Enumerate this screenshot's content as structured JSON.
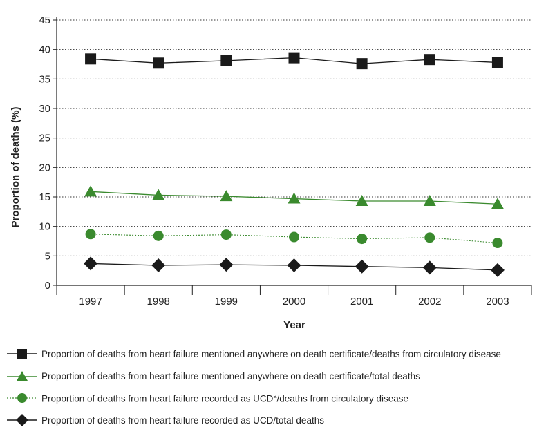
{
  "chart_data": {
    "type": "line",
    "xlabel": "Year",
    "ylabel": "Proportion of deaths (%)",
    "categories": [
      "1997",
      "1998",
      "1999",
      "2000",
      "2001",
      "2002",
      "2003"
    ],
    "ylim": [
      0,
      45
    ],
    "yticks": [
      0,
      5,
      10,
      15,
      20,
      25,
      30,
      35,
      40,
      45
    ],
    "grid": "horizontal dotted",
    "legend_position": "bottom",
    "series": [
      {
        "name": "Proportion of deaths from heart failure mentioned anywhere on death certificate/deaths from circulatory disease",
        "values": [
          38.4,
          37.7,
          38.1,
          38.6,
          37.6,
          38.3,
          37.8
        ],
        "marker": "square",
        "line_style": "solid",
        "color": "#1a1a1a"
      },
      {
        "name": "Proportion of deaths from heart failure mentioned anywhere on death certificate/total deaths",
        "values": [
          15.9,
          15.3,
          15.1,
          14.7,
          14.3,
          14.3,
          13.8
        ],
        "marker": "triangle",
        "line_style": "solid",
        "color": "#3a8a2e"
      },
      {
        "name_prefix": "Proportion of deaths from heart failure recorded as UCD",
        "name_sup": "a",
        "name_suffix": "/deaths from circulatory disease",
        "values": [
          8.7,
          8.4,
          8.6,
          8.2,
          7.9,
          8.1,
          7.2
        ],
        "marker": "circle",
        "line_style": "dotted",
        "color": "#3a8a2e"
      },
      {
        "name": "Proportion of deaths from heart failure recorded as UCD/total deaths",
        "values": [
          3.7,
          3.4,
          3.5,
          3.4,
          3.2,
          3.0,
          2.6
        ],
        "marker": "diamond",
        "line_style": "solid",
        "color": "#1a1a1a"
      }
    ]
  }
}
